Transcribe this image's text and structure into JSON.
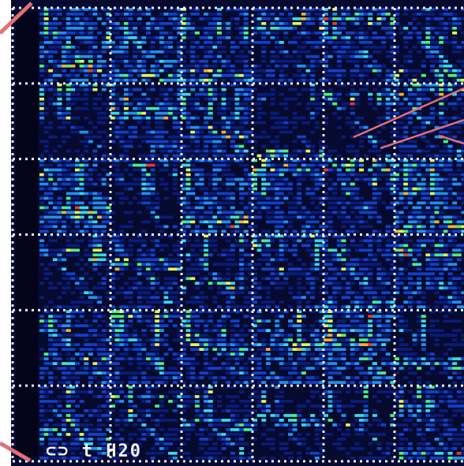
{
  "figure": {
    "corner_label": "⊂⊃ t H20",
    "background_color": "#060a2e",
    "frame_dot_color": "#e8eef6",
    "pointer_line_color": "#e0707a",
    "colormap": [
      "#05083a",
      "#0a1c7a",
      "#1040c8",
      "#1e90f0",
      "#38d8e8",
      "#4cf07a",
      "#e6f25a",
      "#f0b030",
      "#e83a2a"
    ]
  },
  "grid": {
    "block_rows": 6,
    "block_cols": 6,
    "cells_per_block": 16,
    "divider_style": "dotted-white"
  },
  "annotations": {
    "pointer_lines": 3,
    "corner_marks": 2
  }
}
